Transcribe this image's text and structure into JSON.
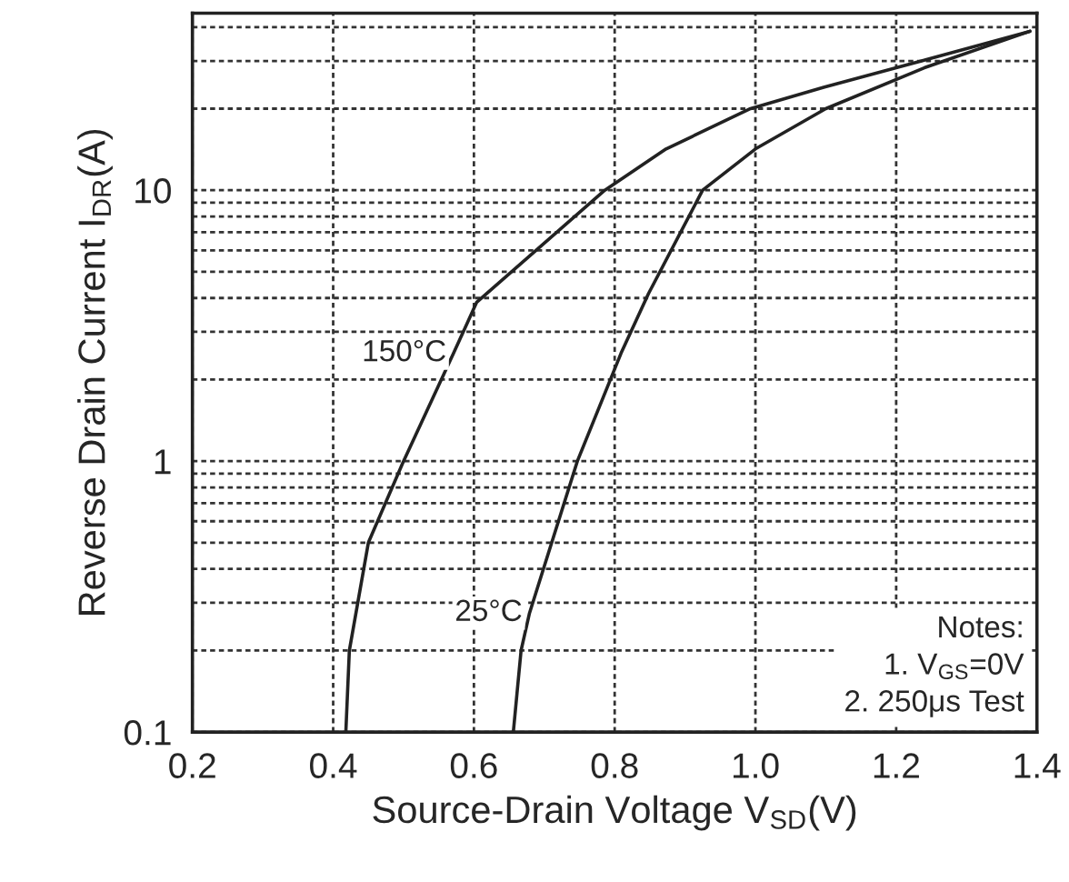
{
  "chart_data": {
    "type": "line",
    "xlabel": "Source-Drain Voltage V$_{SD}$(V)",
    "ylabel": "Reverse Drain Current I$_{DR}$(A)",
    "log": "y",
    "grid": true,
    "marker": "none",
    "line_style": "solid",
    "xlim": [
      0.2,
      1.4
    ],
    "xticks": [
      0.2,
      0.4,
      0.6,
      0.8,
      {
        "value": 1,
        "label": "1.0"
      },
      1.2,
      1.4
    ],
    "ylim": [
      0.1,
      45
    ],
    "yticks": [
      {
        "value": 0.1,
        "label": "0.1"
      },
      {
        "value": 0.2,
        "label": null
      },
      {
        "value": 0.3,
        "label": null
      },
      {
        "value": 0.4,
        "label": null
      },
      {
        "value": 0.5,
        "label": null
      },
      {
        "value": 0.6,
        "label": null
      },
      {
        "value": 0.7,
        "label": null
      },
      {
        "value": 0.8,
        "label": null
      },
      {
        "value": 0.9,
        "label": null
      },
      {
        "value": 1,
        "label": "1"
      },
      {
        "value": 2,
        "label": null
      },
      {
        "value": 3,
        "label": null
      },
      {
        "value": 4,
        "label": null
      },
      {
        "value": 5,
        "label": null
      },
      {
        "value": 6,
        "label": null
      },
      {
        "value": 7,
        "label": null
      },
      {
        "value": 8,
        "label": null
      },
      {
        "value": 9,
        "label": null
      },
      {
        "value": 10,
        "label": "10"
      },
      {
        "value": 20,
        "label": null
      },
      {
        "value": 30,
        "label": null
      },
      {
        "value": 40,
        "label": null
      }
    ],
    "series": [
      {
        "name": "150°C",
        "color": "#222222",
        "x": [
          0.418,
          0.423,
          0.45,
          0.5,
          0.571,
          0.604,
          0.786,
          0.873,
          0.993,
          1.097,
          1.2,
          1.39
        ],
        "values": [
          0.1,
          0.2,
          0.5,
          1,
          2.5,
          3.86,
          10,
          14.2,
          20,
          24,
          28.3,
          38.6
        ]
      },
      {
        "name": "25°C",
        "color": "#222222",
        "x": [
          0.656,
          0.667,
          0.679,
          0.747,
          0.809,
          0.848,
          0.925,
          1.0,
          1.1,
          1.24,
          1.39
        ],
        "values": [
          0.1,
          0.2,
          0.275,
          1,
          2.5,
          4.15,
          10,
          14.2,
          20,
          28.3,
          38.6
        ]
      }
    ],
    "annotations": [
      "Notes:\n1. V$_{GS}$=0V\n2. 250μs Test"
    ]
  }
}
